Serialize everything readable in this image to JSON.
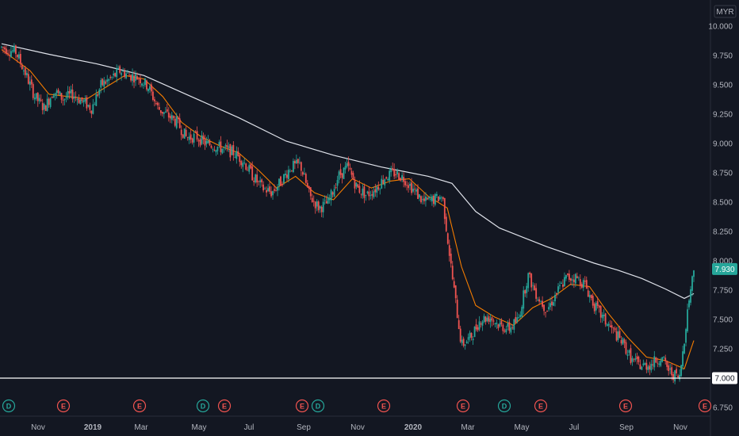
{
  "chart_data": {
    "type": "candlestick",
    "currency": "MYR",
    "ylim": [
      6.7,
      10.1
    ],
    "y_ticks": [
      "10.000",
      "9.750",
      "9.500",
      "9.250",
      "9.000",
      "8.750",
      "8.500",
      "8.250",
      "8.000",
      "7.750",
      "7.500",
      "7.250",
      "7.000",
      "6.750"
    ],
    "x_ticks": [
      {
        "label": "Nov",
        "bold": false
      },
      {
        "label": "2019",
        "bold": true
      },
      {
        "label": "Mar",
        "bold": false
      },
      {
        "label": "May",
        "bold": false
      },
      {
        "label": "Jul",
        "bold": false
      },
      {
        "label": "Sep",
        "bold": false
      },
      {
        "label": "Nov",
        "bold": false
      },
      {
        "label": "2020",
        "bold": true
      },
      {
        "label": "Mar",
        "bold": false
      },
      {
        "label": "May",
        "bold": false
      },
      {
        "label": "Jul",
        "bold": false
      },
      {
        "label": "Sep",
        "bold": false
      },
      {
        "label": "Nov",
        "bold": false
      }
    ],
    "last_price": {
      "label": "7.930",
      "value": 7.93,
      "color": "#26a69a"
    },
    "horizontal_line": {
      "label": "7.000",
      "value": 7.0
    },
    "colors": {
      "up": "#26a69a",
      "down": "#ef5350",
      "ma_short": "#f57c00",
      "ma_long": "#e0e3eb",
      "background": "#131722"
    },
    "price_path": [
      [
        0,
        9.82
      ],
      [
        3,
        9.78
      ],
      [
        5,
        9.6
      ],
      [
        7,
        9.4
      ],
      [
        9,
        9.3
      ],
      [
        11,
        9.45
      ],
      [
        13,
        9.38
      ],
      [
        15,
        9.42
      ],
      [
        17,
        9.36
      ],
      [
        19,
        9.3
      ],
      [
        21,
        9.5
      ],
      [
        23,
        9.55
      ],
      [
        25,
        9.62
      ],
      [
        27,
        9.58
      ],
      [
        29,
        9.56
      ],
      [
        31,
        9.48
      ],
      [
        33,
        9.3
      ],
      [
        35,
        9.24
      ],
      [
        37,
        9.18
      ],
      [
        39,
        9.05
      ],
      [
        41,
        9.06
      ],
      [
        43,
        9.0
      ],
      [
        45,
        8.98
      ],
      [
        47,
        8.95
      ],
      [
        49,
        8.92
      ],
      [
        51,
        8.85
      ],
      [
        53,
        8.72
      ],
      [
        55,
        8.62
      ],
      [
        57,
        8.58
      ],
      [
        59,
        8.68
      ],
      [
        61,
        8.8
      ],
      [
        63,
        8.82
      ],
      [
        65,
        8.55
      ],
      [
        67,
        8.45
      ],
      [
        69,
        8.5
      ],
      [
        71,
        8.72
      ],
      [
        73,
        8.8
      ],
      [
        75,
        8.62
      ],
      [
        77,
        8.56
      ],
      [
        79,
        8.62
      ],
      [
        81,
        8.72
      ],
      [
        83,
        8.75
      ],
      [
        85,
        8.7
      ],
      [
        87,
        8.6
      ],
      [
        89,
        8.5
      ],
      [
        91,
        8.52
      ],
      [
        93,
        8.55
      ],
      [
        95,
        7.88
      ],
      [
        97,
        7.28
      ],
      [
        99,
        7.35
      ],
      [
        101,
        7.5
      ],
      [
        103,
        7.52
      ],
      [
        105,
        7.45
      ],
      [
        107,
        7.42
      ],
      [
        109,
        7.5
      ],
      [
        111,
        7.88
      ],
      [
        113,
        7.7
      ],
      [
        115,
        7.58
      ],
      [
        117,
        7.72
      ],
      [
        119,
        7.85
      ],
      [
        121,
        7.86
      ],
      [
        123,
        7.8
      ],
      [
        125,
        7.62
      ],
      [
        127,
        7.5
      ],
      [
        129,
        7.4
      ],
      [
        131,
        7.3
      ],
      [
        133,
        7.15
      ],
      [
        135,
        7.1
      ],
      [
        137,
        7.12
      ],
      [
        139,
        7.18
      ],
      [
        141,
        7.05
      ],
      [
        143,
        7.0
      ],
      [
        145,
        7.68
      ],
      [
        146,
        7.93
      ]
    ],
    "ma_short": [
      [
        0,
        9.8
      ],
      [
        6,
        9.62
      ],
      [
        10,
        9.42
      ],
      [
        14,
        9.4
      ],
      [
        18,
        9.38
      ],
      [
        22,
        9.48
      ],
      [
        26,
        9.58
      ],
      [
        30,
        9.55
      ],
      [
        34,
        9.4
      ],
      [
        38,
        9.18
      ],
      [
        42,
        9.06
      ],
      [
        46,
        8.98
      ],
      [
        50,
        8.92
      ],
      [
        54,
        8.78
      ],
      [
        58,
        8.62
      ],
      [
        62,
        8.72
      ],
      [
        66,
        8.58
      ],
      [
        70,
        8.52
      ],
      [
        74,
        8.7
      ],
      [
        78,
        8.62
      ],
      [
        82,
        8.68
      ],
      [
        86,
        8.7
      ],
      [
        90,
        8.55
      ],
      [
        94,
        8.45
      ],
      [
        97,
        7.95
      ],
      [
        100,
        7.62
      ],
      [
        104,
        7.52
      ],
      [
        108,
        7.45
      ],
      [
        112,
        7.6
      ],
      [
        116,
        7.68
      ],
      [
        120,
        7.8
      ],
      [
        124,
        7.78
      ],
      [
        128,
        7.55
      ],
      [
        132,
        7.35
      ],
      [
        136,
        7.18
      ],
      [
        140,
        7.15
      ],
      [
        144,
        7.08
      ],
      [
        146,
        7.32
      ]
    ],
    "ma_long": [
      [
        0,
        9.85
      ],
      [
        10,
        9.76
      ],
      [
        20,
        9.68
      ],
      [
        30,
        9.58
      ],
      [
        40,
        9.4
      ],
      [
        50,
        9.22
      ],
      [
        60,
        9.02
      ],
      [
        70,
        8.9
      ],
      [
        80,
        8.8
      ],
      [
        90,
        8.72
      ],
      [
        95,
        8.66
      ],
      [
        100,
        8.42
      ],
      [
        105,
        8.28
      ],
      [
        110,
        8.2
      ],
      [
        115,
        8.12
      ],
      [
        120,
        8.05
      ],
      [
        125,
        7.98
      ],
      [
        130,
        7.92
      ],
      [
        135,
        7.85
      ],
      [
        140,
        7.76
      ],
      [
        144,
        7.68
      ],
      [
        146,
        7.72
      ]
    ],
    "events": [
      {
        "letter": "D",
        "color": "#26a69a"
      },
      {
        "letter": "E",
        "color": "#ef5350"
      },
      {
        "letter": "E",
        "color": "#ef5350"
      },
      {
        "letter": "D",
        "color": "#26a69a"
      },
      {
        "letter": "E",
        "color": "#ef5350"
      },
      {
        "letter": "E",
        "color": "#ef5350"
      },
      {
        "letter": "D",
        "color": "#26a69a"
      },
      {
        "letter": "E",
        "color": "#ef5350"
      },
      {
        "letter": "E",
        "color": "#ef5350"
      },
      {
        "letter": "D",
        "color": "#26a69a"
      },
      {
        "letter": "E",
        "color": "#ef5350"
      },
      {
        "letter": "E",
        "color": "#ef5350"
      },
      {
        "letter": "E",
        "color": "#ef5350"
      }
    ]
  }
}
